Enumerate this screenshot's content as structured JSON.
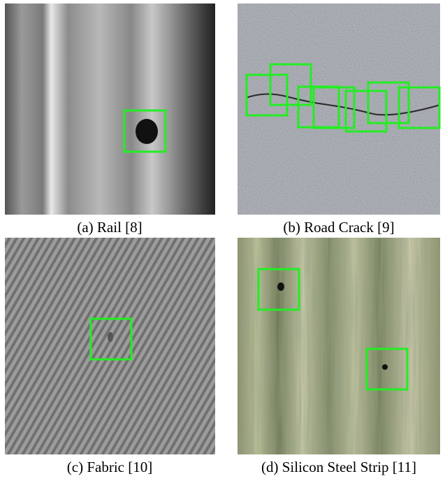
{
  "figure": {
    "panels": [
      {
        "caption": "(a) Rail [8]"
      },
      {
        "caption": "(b) Road Crack [9]"
      },
      {
        "caption": "(c) Fabric [10]"
      },
      {
        "caption": "(d) Silicon Steel Strip [11]"
      }
    ]
  }
}
